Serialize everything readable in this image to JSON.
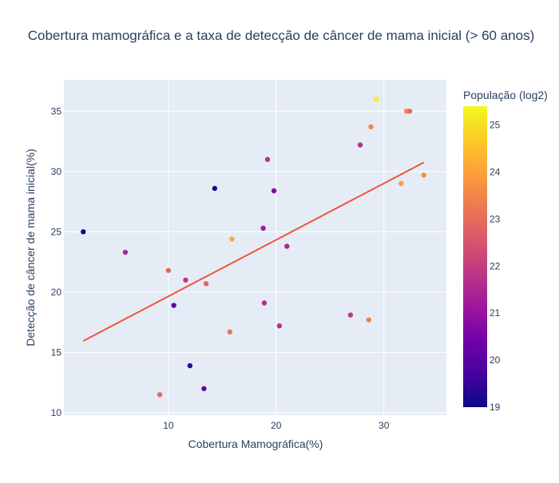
{
  "chart_data": {
    "type": "scatter",
    "title": "Cobertura mamográfica e a taxa de detecção de câncer de mama inicial (> 60 anos)",
    "xlabel": "Cobertura Mamográfica(%)",
    "ylabel": "Detecção de câncer de mama inicial(%)",
    "xlim": [
      0.3,
      35.8
    ],
    "ylim": [
      9.8,
      37.6
    ],
    "x_ticks": [
      10,
      20,
      30
    ],
    "y_ticks": [
      10,
      15,
      20,
      25,
      30,
      35
    ],
    "grid": true,
    "colorbar": {
      "title": "População (log2)",
      "range": [
        19,
        25.4
      ],
      "ticks": [
        19,
        20,
        21,
        22,
        23,
        24,
        25
      ],
      "colorscale": [
        "#0d0887",
        "#46039f",
        "#7201a8",
        "#9c179e",
        "#bd3786",
        "#d8576b",
        "#ed7953",
        "#fb9f3a",
        "#fdca26",
        "#f0f921"
      ]
    },
    "points": [
      {
        "x": 2.1,
        "y": 25.0,
        "c": 19.1
      },
      {
        "x": 6.0,
        "y": 23.3,
        "c": 21.4
      },
      {
        "x": 9.2,
        "y": 11.5,
        "c": 23.0
      },
      {
        "x": 10.0,
        "y": 21.8,
        "c": 22.9
      },
      {
        "x": 10.5,
        "y": 18.9,
        "c": 20.1
      },
      {
        "x": 11.6,
        "y": 21.0,
        "c": 21.8
      },
      {
        "x": 12.0,
        "y": 13.9,
        "c": 19.4
      },
      {
        "x": 13.3,
        "y": 12.0,
        "c": 20.2
      },
      {
        "x": 13.5,
        "y": 20.7,
        "c": 22.8
      },
      {
        "x": 14.3,
        "y": 28.6,
        "c": 19.2
      },
      {
        "x": 15.7,
        "y": 16.7,
        "c": 23.2
      },
      {
        "x": 15.9,
        "y": 24.4,
        "c": 24.1
      },
      {
        "x": 18.8,
        "y": 25.3,
        "c": 21.2
      },
      {
        "x": 18.9,
        "y": 19.1,
        "c": 21.6
      },
      {
        "x": 19.2,
        "y": 31.0,
        "c": 21.7
      },
      {
        "x": 19.8,
        "y": 28.4,
        "c": 20.7
      },
      {
        "x": 20.3,
        "y": 17.2,
        "c": 21.7
      },
      {
        "x": 21.0,
        "y": 23.8,
        "c": 21.5
      },
      {
        "x": 26.9,
        "y": 18.1,
        "c": 21.9
      },
      {
        "x": 27.8,
        "y": 32.2,
        "c": 21.7
      },
      {
        "x": 28.6,
        "y": 17.7,
        "c": 23.4
      },
      {
        "x": 28.8,
        "y": 33.7,
        "c": 23.5
      },
      {
        "x": 29.3,
        "y": 36.0,
        "c": 25.3
      },
      {
        "x": 31.6,
        "y": 29.0,
        "c": 24.0
      },
      {
        "x": 32.1,
        "y": 35.0,
        "c": 23.5
      },
      {
        "x": 32.4,
        "y": 35.0,
        "c": 22.9
      },
      {
        "x": 33.7,
        "y": 29.7,
        "c": 23.7
      }
    ],
    "trendline": {
      "x": [
        2.1,
        33.7
      ],
      "y": [
        15.95,
        30.75
      ],
      "color": "#ef553b"
    }
  }
}
